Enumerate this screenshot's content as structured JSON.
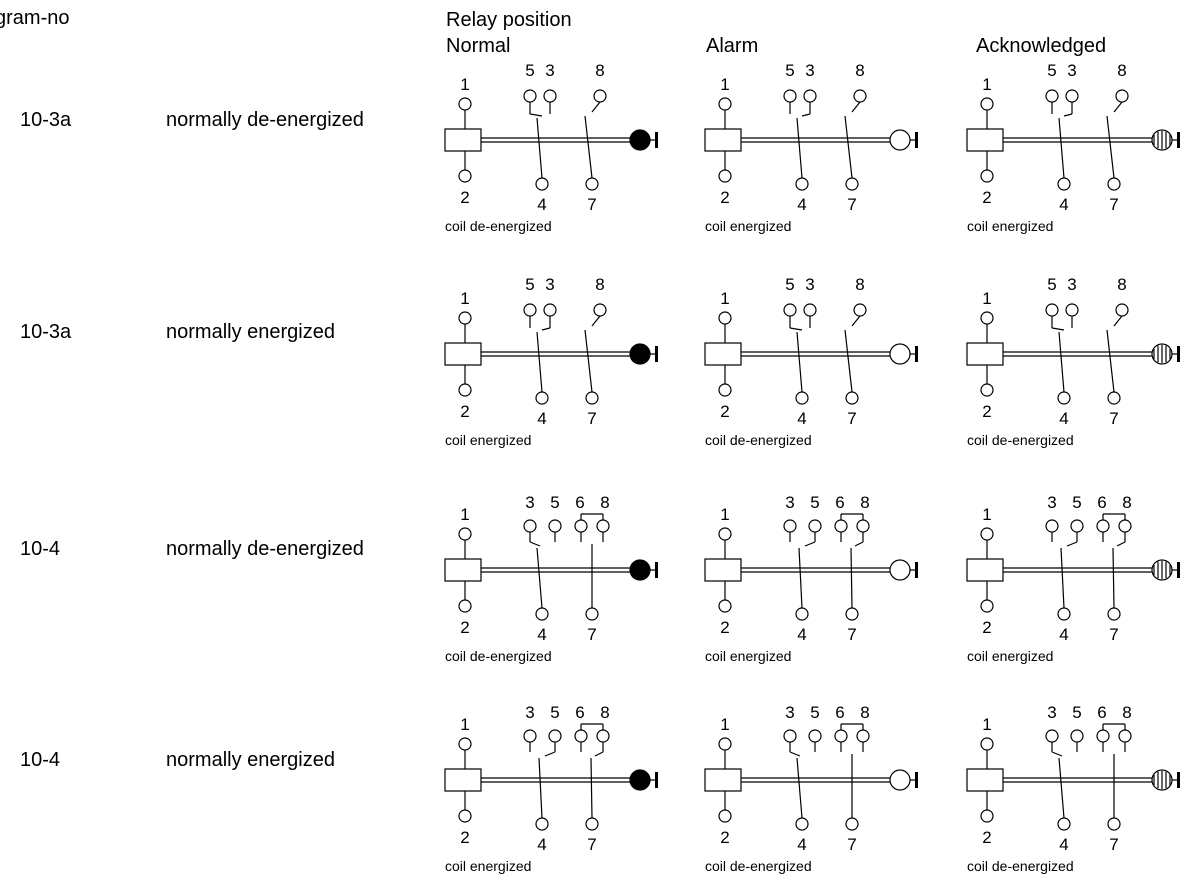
{
  "header": {
    "diagram_no": "gram-no",
    "relay_position": "Relay position",
    "states": [
      "Normal",
      "Alarm",
      "Acknowledged"
    ]
  },
  "rows": [
    {
      "diagram": "10-3a",
      "mode": "normally de-energized",
      "type": "10-3a",
      "cells": [
        {
          "state": "Normal",
          "indicator": "filled",
          "caption": "coil de-energized",
          "terminals": [
            "1",
            "2",
            "5",
            "3",
            "4",
            "8",
            "7"
          ]
        },
        {
          "state": "Alarm",
          "indicator": "open",
          "caption": "coil energized",
          "terminals": [
            "1",
            "2",
            "5",
            "3",
            "4",
            "8",
            "7"
          ]
        },
        {
          "state": "Acknowledged",
          "indicator": "hatched",
          "caption": "coil energized",
          "terminals": [
            "1",
            "2",
            "5",
            "3",
            "4",
            "8",
            "7"
          ]
        }
      ]
    },
    {
      "diagram": "10-3a",
      "mode": "normally energized",
      "type": "10-3a",
      "cells": [
        {
          "state": "Normal",
          "indicator": "filled",
          "caption": "coil energized",
          "terminals": [
            "1",
            "2",
            "5",
            "3",
            "4",
            "8",
            "7"
          ]
        },
        {
          "state": "Alarm",
          "indicator": "open",
          "caption": "coil de-energized",
          "terminals": [
            "1",
            "2",
            "5",
            "3",
            "4",
            "8",
            "7"
          ]
        },
        {
          "state": "Acknowledged",
          "indicator": "hatched",
          "caption": "coil de-energized",
          "terminals": [
            "1",
            "2",
            "5",
            "3",
            "4",
            "8",
            "7"
          ]
        }
      ]
    },
    {
      "diagram": "10-4",
      "mode": "normally de-energized",
      "type": "10-4",
      "cells": [
        {
          "state": "Normal",
          "indicator": "filled",
          "caption": "coil de-energized",
          "terminals": [
            "1",
            "2",
            "3",
            "5",
            "6",
            "8",
            "4",
            "7"
          ]
        },
        {
          "state": "Alarm",
          "indicator": "open",
          "caption": "coil energized",
          "terminals": [
            "1",
            "2",
            "3",
            "5",
            "6",
            "8",
            "4",
            "7"
          ]
        },
        {
          "state": "Acknowledged",
          "indicator": "hatched",
          "caption": "coil energized",
          "terminals": [
            "1",
            "2",
            "3",
            "5",
            "6",
            "8",
            "4",
            "7"
          ]
        }
      ]
    },
    {
      "diagram": "10-4",
      "mode": "normally energized",
      "type": "10-4",
      "cells": [
        {
          "state": "Normal",
          "indicator": "filled",
          "caption": "coil energized",
          "terminals": [
            "1",
            "2",
            "3",
            "5",
            "6",
            "8",
            "4",
            "7"
          ]
        },
        {
          "state": "Alarm",
          "indicator": "open",
          "caption": "coil de-energized",
          "terminals": [
            "1",
            "2",
            "3",
            "5",
            "6",
            "8",
            "4",
            "7"
          ]
        },
        {
          "state": "Acknowledged",
          "indicator": "hatched",
          "caption": "coil de-energized",
          "terminals": [
            "1",
            "2",
            "3",
            "5",
            "6",
            "8",
            "4",
            "7"
          ]
        }
      ]
    }
  ]
}
